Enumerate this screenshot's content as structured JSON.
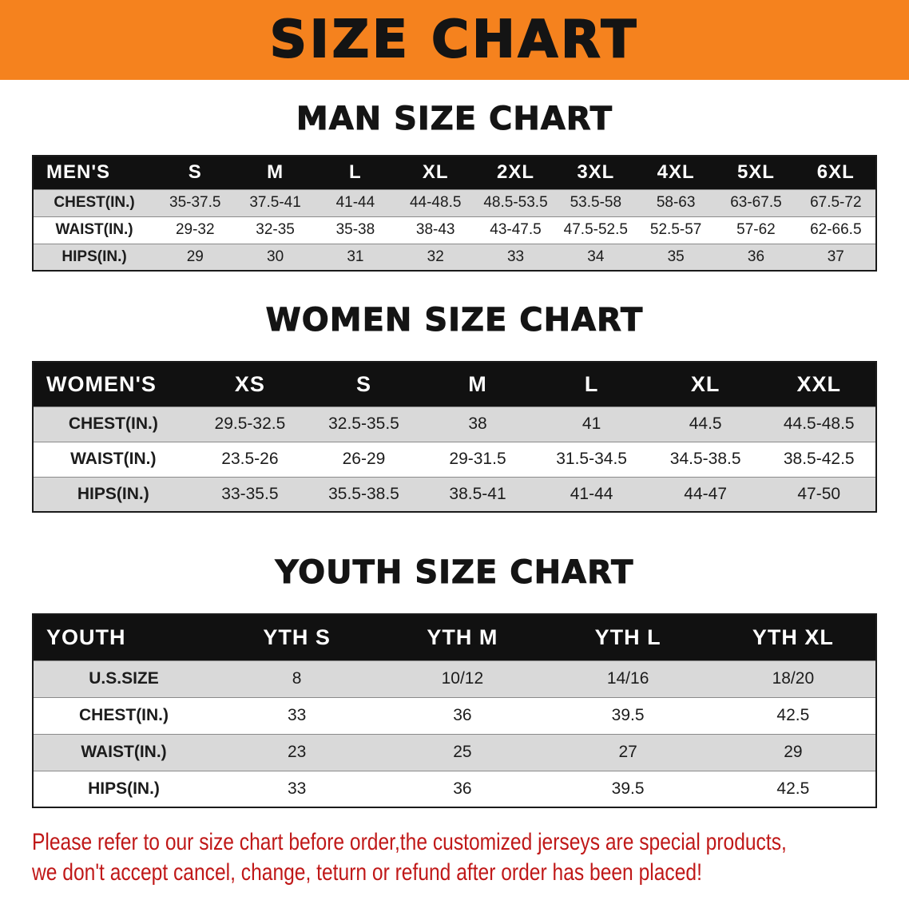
{
  "banner": {
    "title": "SIZE CHART"
  },
  "theme": {
    "banner_bg": "#f5821e",
    "table_header_bg": "#111111",
    "table_header_text": "#ffffff",
    "row_alt_bg": "#d9d9d9",
    "body_text": "#141414",
    "note_color": "#c01818"
  },
  "chart_data": [
    {
      "type": "table",
      "title": "MAN SIZE CHART",
      "columns": [
        "MEN'S",
        "S",
        "M",
        "L",
        "XL",
        "2XL",
        "3XL",
        "4XL",
        "5XL",
        "6XL"
      ],
      "rows": [
        [
          "CHEST(IN.)",
          "35-37.5",
          "37.5-41",
          "41-44",
          "44-48.5",
          "48.5-53.5",
          "53.5-58",
          "58-63",
          "63-67.5",
          "67.5-72"
        ],
        [
          "WAIST(IN.)",
          "29-32",
          "32-35",
          "35-38",
          "38-43",
          "43-47.5",
          "47.5-52.5",
          "52.5-57",
          "57-62",
          "62-66.5"
        ],
        [
          "HIPS(IN.)",
          "29",
          "30",
          "31",
          "32",
          "33",
          "34",
          "35",
          "36",
          "37"
        ]
      ]
    },
    {
      "type": "table",
      "title": "WOMEN SIZE CHART",
      "columns": [
        "WOMEN'S",
        "XS",
        "S",
        "M",
        "L",
        "XL",
        "XXL"
      ],
      "rows": [
        [
          "CHEST(IN.)",
          "29.5-32.5",
          "32.5-35.5",
          "38",
          "41",
          "44.5",
          "44.5-48.5"
        ],
        [
          "WAIST(IN.)",
          "23.5-26",
          "26-29",
          "29-31.5",
          "31.5-34.5",
          "34.5-38.5",
          "38.5-42.5"
        ],
        [
          "HIPS(IN.)",
          "33-35.5",
          "35.5-38.5",
          "38.5-41",
          "41-44",
          "44-47",
          "47-50"
        ]
      ]
    },
    {
      "type": "table",
      "title": "YOUTH SIZE CHART",
      "columns": [
        "YOUTH",
        "YTH S",
        "YTH M",
        "YTH L",
        "YTH XL"
      ],
      "rows": [
        [
          "U.S.SIZE",
          "8",
          "10/12",
          "14/16",
          "18/20"
        ],
        [
          "CHEST(IN.)",
          "33",
          "36",
          "39.5",
          "42.5"
        ],
        [
          "WAIST(IN.)",
          "23",
          "25",
          "27",
          "29"
        ],
        [
          "HIPS(IN.)",
          "33",
          "36",
          "39.5",
          "42.5"
        ]
      ]
    }
  ],
  "footer": {
    "lines": [
      "Please refer to our size chart before order,the customized jerseys are special products,",
      "we don't accept cancel, change, teturn or refund after order has been placed!"
    ]
  }
}
